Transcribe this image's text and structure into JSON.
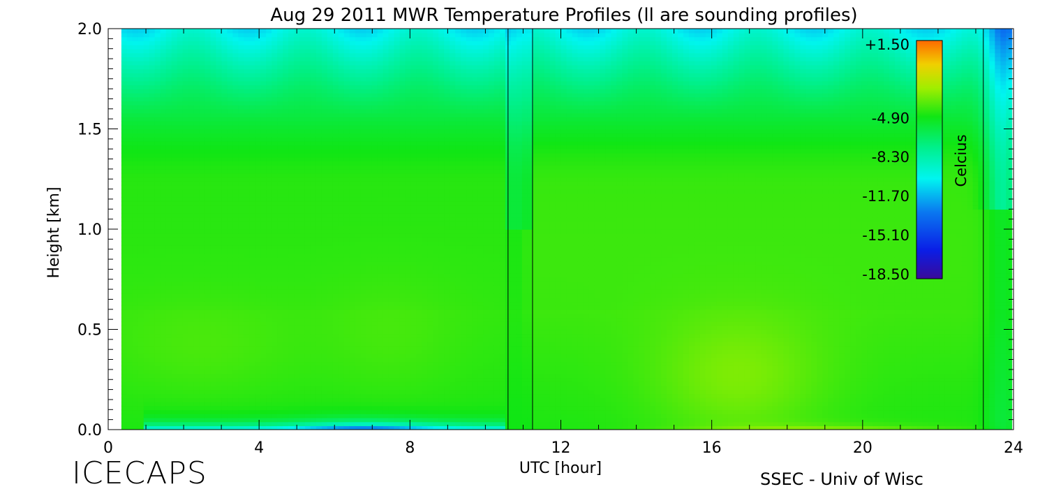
{
  "chart_data": {
    "type": "heatmap",
    "title": "Aug 29 2011 MWR Temperature Profiles (ll are sounding profiles)",
    "xlabel": "UTC [hour]",
    "ylabel": "Height [km]",
    "xlim": [
      0,
      24
    ],
    "ylim": [
      0,
      2.0
    ],
    "x_ticks": [
      "0",
      "4",
      "8",
      "12",
      "16",
      "20",
      "24"
    ],
    "x_tick_values": [
      0,
      4,
      8,
      12,
      16,
      20,
      24
    ],
    "y_ticks": [
      "0.0",
      "0.5",
      "1.0",
      "1.5",
      "2.0"
    ],
    "y_tick_values": [
      0,
      0.5,
      1.0,
      1.5,
      2.0
    ],
    "data_x_range": [
      0.35,
      23.95
    ],
    "sounding_times": [
      10.6,
      11.25,
      23.2
    ],
    "colorbar": {
      "label": "Celcius",
      "ticks": [
        "+1.50",
        "-4.90",
        "-8.30",
        "-11.70",
        "-15.10",
        "-18.50"
      ],
      "tick_values": [
        1.5,
        -4.9,
        -8.3,
        -11.7,
        -15.1,
        -18.5
      ],
      "range": [
        -18.5,
        1.5
      ],
      "colormap": "rainbow"
    },
    "grid": false
  },
  "footer": {
    "project": "ICECAPS",
    "credit": "SSEC - Univ of Wisc"
  }
}
